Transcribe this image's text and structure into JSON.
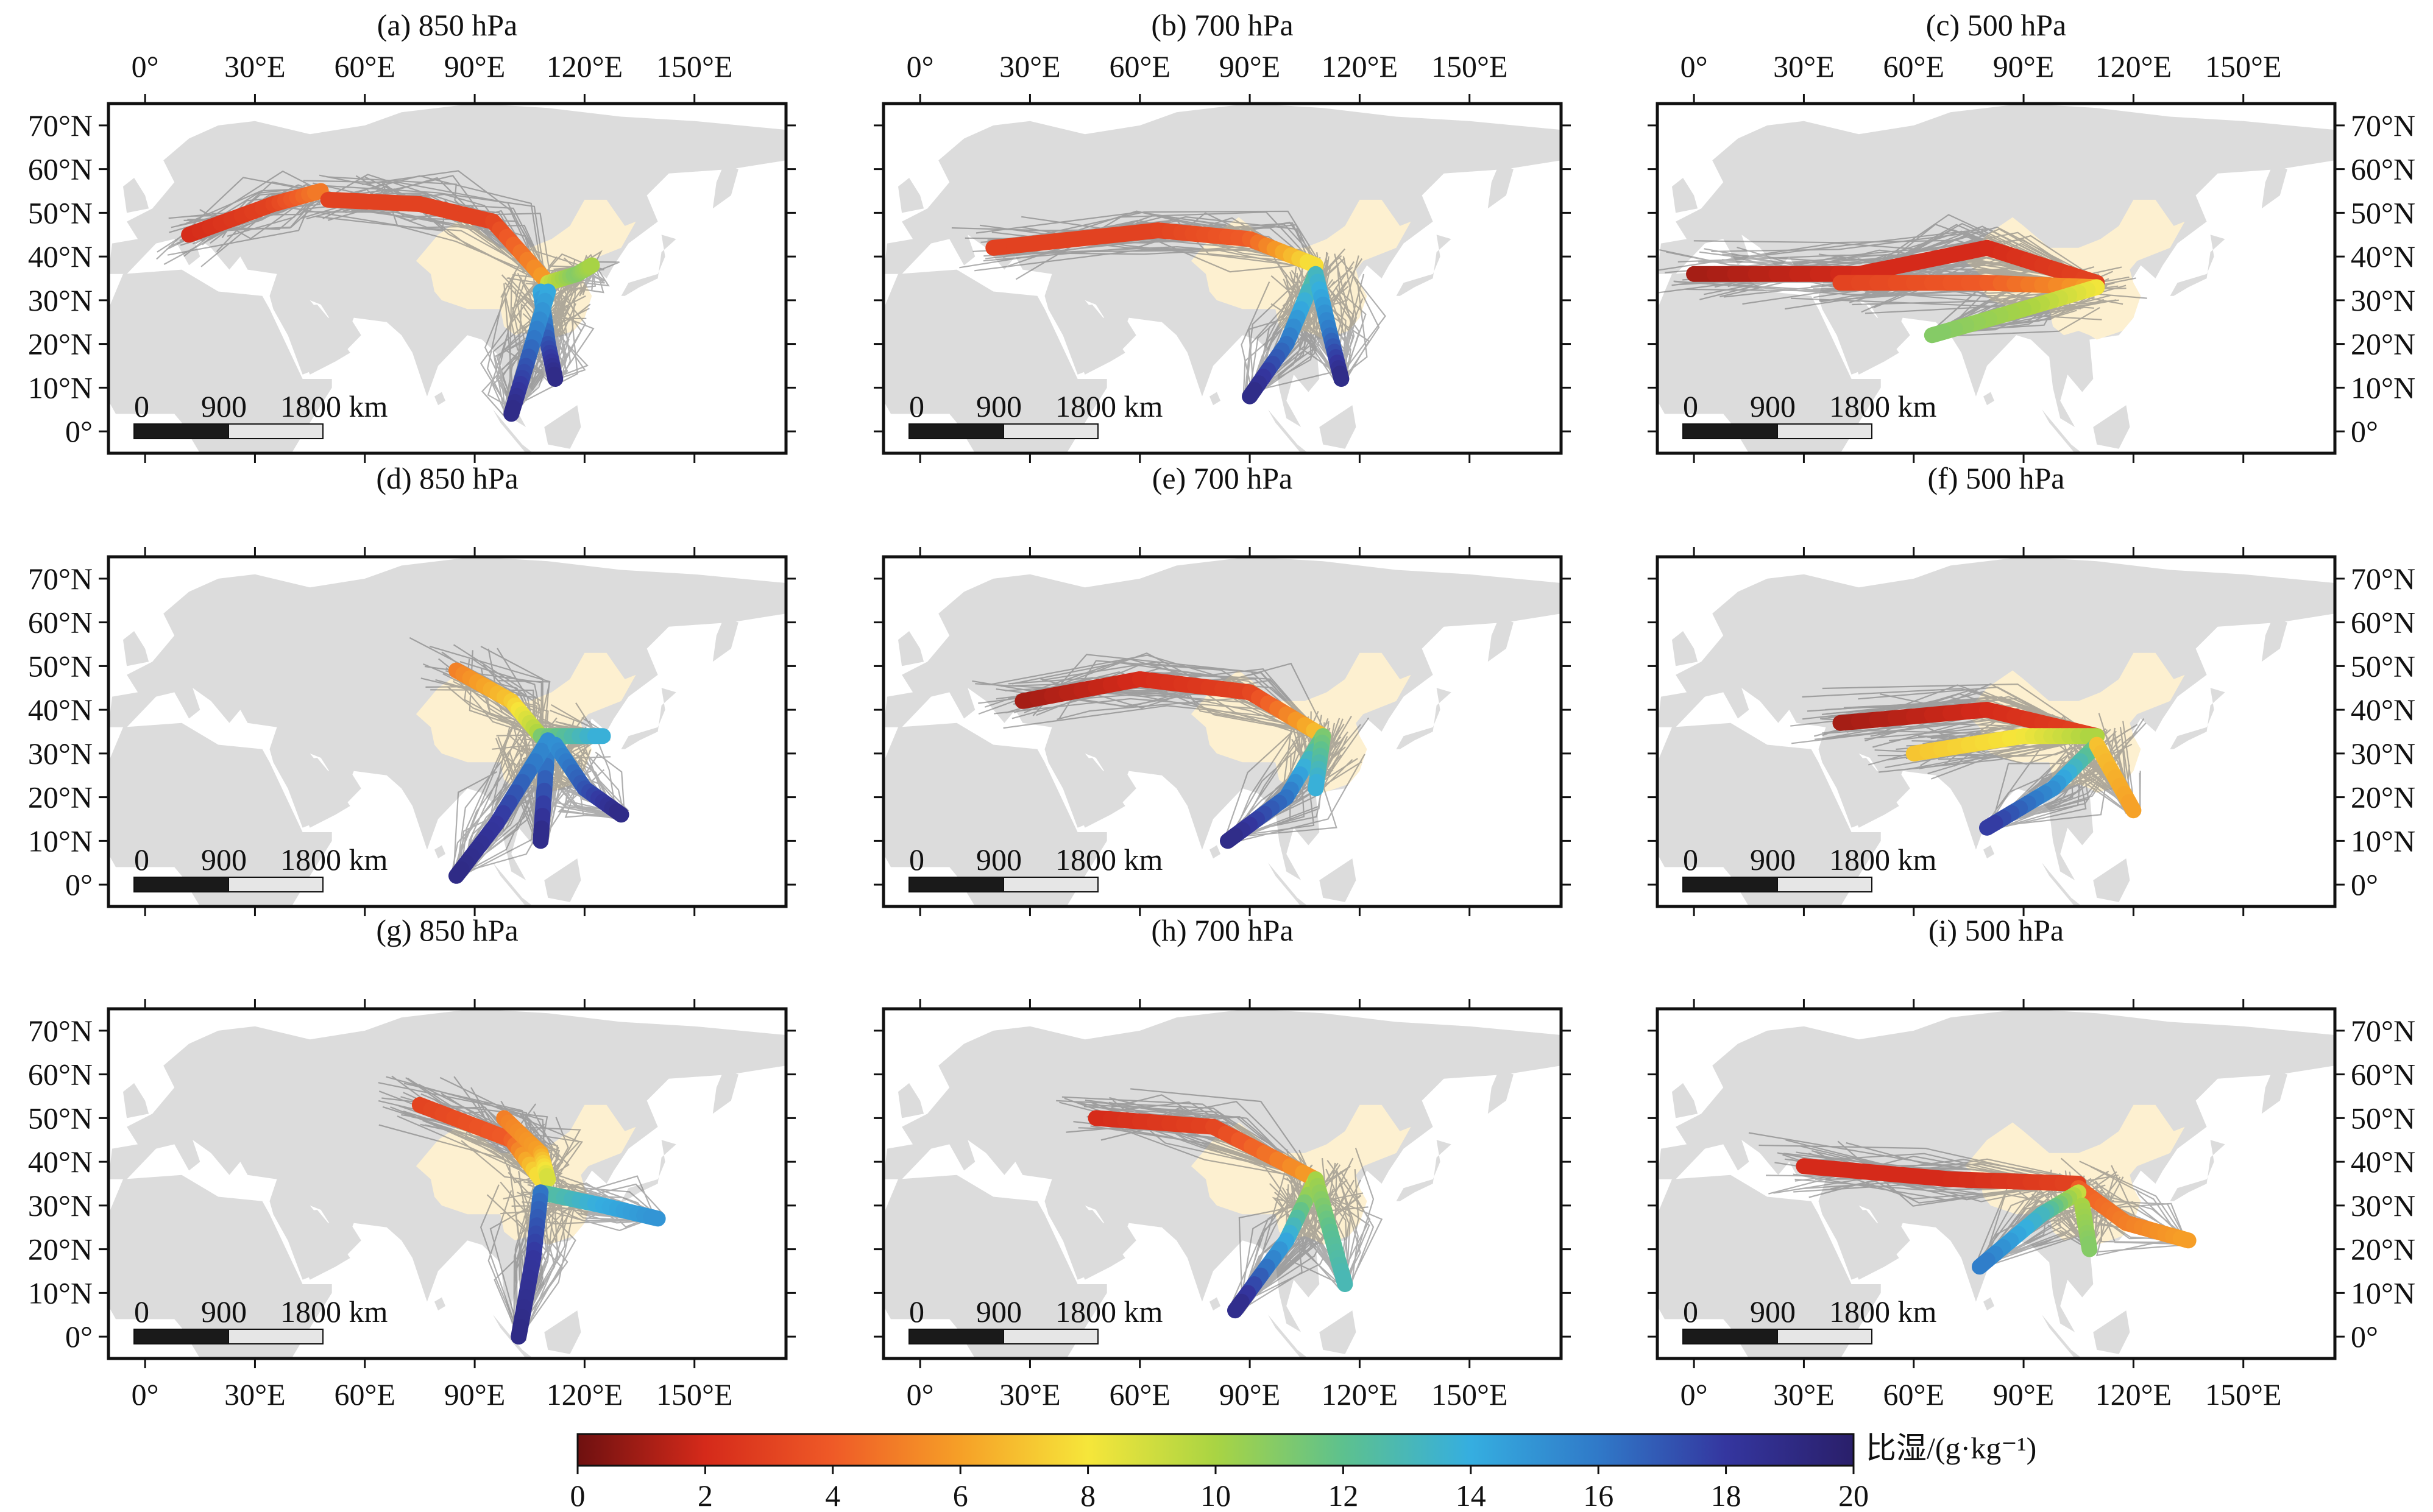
{
  "panels": [
    {
      "id": "a",
      "title": "(a) 850 hPa"
    },
    {
      "id": "b",
      "title": "(b) 700 hPa"
    },
    {
      "id": "c",
      "title": "(c) 500 hPa"
    },
    {
      "id": "d",
      "title": "(d) 850 hPa"
    },
    {
      "id": "e",
      "title": "(e) 700 hPa"
    },
    {
      "id": "f",
      "title": "(f) 500 hPa"
    },
    {
      "id": "g",
      "title": "(g) 850 hPa"
    },
    {
      "id": "h",
      "title": "(h) 700 hPa"
    },
    {
      "id": "i",
      "title": "(i) 500 hPa"
    }
  ],
  "lon_ticks": [
    "0°",
    "30°E",
    "60°E",
    "90°E",
    "120°E",
    "150°E"
  ],
  "lat_ticks": [
    "70°N",
    "60°N",
    "50°N",
    "40°N",
    "30°N",
    "20°N",
    "10°N",
    "0°"
  ],
  "lon_values": [
    0,
    30,
    60,
    90,
    120,
    150
  ],
  "lat_values": [
    70,
    60,
    50,
    40,
    30,
    20,
    10,
    0
  ],
  "map_extent": {
    "lon": [
      -10,
      175
    ],
    "lat": [
      -5,
      75
    ]
  },
  "scale_bar": {
    "labels": [
      "0",
      "900",
      "1800 km"
    ]
  },
  "colorbar": {
    "label": "比湿/(g·kg⁻¹)",
    "ticks": [
      "0",
      "2",
      "4",
      "6",
      "8",
      "10",
      "12",
      "14",
      "16",
      "18",
      "20"
    ],
    "range": [
      0,
      20
    ],
    "colors": [
      "#6e1010",
      "#d52a1a",
      "#ef5a27",
      "#f6a027",
      "#f6e63a",
      "#a9d443",
      "#5dc18e",
      "#35aee0",
      "#3079c8",
      "#34369f",
      "#2a1f6a"
    ]
  },
  "colors": {
    "land": "#dcdcdc",
    "china": "#fdf0d0",
    "trajectory_lines": "#6e6e6e",
    "frame": "#111111"
  },
  "chart_data": {
    "type": "map",
    "variable": "specific humidity (g/kg) along mean trajectory clusters",
    "clusters": [
      {
        "panel": "a",
        "paths": [
          {
            "points": [
              [
                12,
                45
              ],
              [
                35,
                52
              ],
              [
                48,
                55
              ]
            ],
            "q": [
              2,
              3,
              5
            ]
          },
          {
            "points": [
              [
                50,
                53
              ],
              [
                75,
                52
              ],
              [
                95,
                48
              ],
              [
                110,
                34
              ]
            ],
            "q": [
              3,
              3,
              3,
              6
            ]
          },
          {
            "points": [
              [
                110,
                34
              ],
              [
                118,
                36
              ],
              [
                122,
                38
              ]
            ],
            "q": [
              9,
              11,
              10
            ]
          },
          {
            "points": [
              [
                108,
                32
              ],
              [
                110,
                20
              ],
              [
                112,
                12
              ]
            ],
            "q": [
              14,
              17,
              19
            ]
          },
          {
            "points": [
              [
                110,
                32
              ],
              [
                104,
                15
              ],
              [
                100,
                4
              ]
            ],
            "q": [
              14,
              17,
              19
            ]
          }
        ]
      },
      {
        "panel": "b",
        "paths": [
          {
            "points": [
              [
                20,
                42
              ],
              [
                65,
                46
              ],
              [
                90,
                44
              ],
              [
                108,
                38
              ]
            ],
            "q": [
              3,
              3,
              4,
              8
            ]
          },
          {
            "points": [
              [
                108,
                36
              ],
              [
                100,
                20
              ],
              [
                90,
                8
              ]
            ],
            "q": [
              12,
              16,
              19
            ]
          },
          {
            "points": [
              [
                108,
                36
              ],
              [
                112,
                22
              ],
              [
                115,
                12
              ]
            ],
            "q": [
              13,
              16,
              19
            ]
          }
        ]
      },
      {
        "panel": "c",
        "paths": [
          {
            "points": [
              [
                0,
                36
              ],
              [
                45,
                36
              ],
              [
                80,
                42
              ],
              [
                110,
                34
              ]
            ],
            "q": [
              1,
              2,
              2,
              3
            ]
          },
          {
            "points": [
              [
                40,
                34
              ],
              [
                80,
                34
              ],
              [
                110,
                33
              ]
            ],
            "q": [
              3,
              4,
              6
            ]
          },
          {
            "points": [
              [
                110,
                33
              ],
              [
                90,
                28
              ],
              [
                65,
                22
              ]
            ],
            "q": [
              8,
              10,
              11
            ]
          }
        ]
      },
      {
        "panel": "d",
        "paths": [
          {
            "points": [
              [
                85,
                49
              ],
              [
                100,
                42
              ],
              [
                108,
                34
              ]
            ],
            "q": [
              5,
              7,
              10
            ]
          },
          {
            "points": [
              [
                108,
                34
              ],
              [
                125,
                34
              ]
            ],
            "q": [
              11,
              14
            ]
          },
          {
            "points": [
              [
                110,
                33
              ],
              [
                108,
                10
              ]
            ],
            "q": [
              15,
              19
            ]
          },
          {
            "points": [
              [
                110,
                33
              ],
              [
                96,
                14
              ],
              [
                85,
                2
              ]
            ],
            "q": [
              15,
              18,
              19
            ]
          },
          {
            "points": [
              [
                112,
                32
              ],
              [
                120,
                22
              ],
              [
                130,
                16
              ]
            ],
            "q": [
              15,
              17,
              19
            ]
          }
        ]
      },
      {
        "panel": "e",
        "paths": [
          {
            "points": [
              [
                28,
                42
              ],
              [
                60,
                47
              ],
              [
                90,
                44
              ],
              [
                110,
                34
              ]
            ],
            "q": [
              1,
              2,
              3,
              7
            ]
          },
          {
            "points": [
              [
                110,
                34
              ],
              [
                100,
                20
              ],
              [
                84,
                10
              ]
            ],
            "q": [
              11,
              16,
              19
            ]
          },
          {
            "points": [
              [
                110,
                34
              ],
              [
                108,
                22
              ]
            ],
            "q": [
              11,
              14
            ]
          }
        ]
      },
      {
        "panel": "f",
        "paths": [
          {
            "points": [
              [
                40,
                37
              ],
              [
                80,
                40
              ],
              [
                110,
                34
              ]
            ],
            "q": [
              1,
              2,
              3
            ]
          },
          {
            "points": [
              [
                60,
                30
              ],
              [
                90,
                34
              ],
              [
                110,
                34
              ]
            ],
            "q": [
              7,
              8,
              10
            ]
          },
          {
            "points": [
              [
                110,
                32
              ],
              [
                98,
                22
              ],
              [
                80,
                13
              ]
            ],
            "q": [
              11,
              15,
              18
            ]
          },
          {
            "points": [
              [
                110,
                32
              ],
              [
                120,
                17
              ]
            ],
            "q": [
              7,
              6
            ]
          }
        ]
      },
      {
        "panel": "g",
        "paths": [
          {
            "points": [
              [
                75,
                53
              ],
              [
                100,
                45
              ],
              [
                108,
                36
              ]
            ],
            "q": [
              3,
              4,
              8
            ]
          },
          {
            "points": [
              [
                98,
                50
              ],
              [
                108,
                42
              ],
              [
                110,
                36
              ]
            ],
            "q": [
              5,
              6,
              9
            ]
          },
          {
            "points": [
              [
                108,
                33
              ],
              [
                125,
                30
              ],
              [
                140,
                27
              ]
            ],
            "q": [
              12,
              14,
              15
            ]
          },
          {
            "points": [
              [
                108,
                33
              ],
              [
                106,
                18
              ],
              [
                102,
                0
              ]
            ],
            "q": [
              16,
              18,
              19
            ]
          }
        ]
      },
      {
        "panel": "h",
        "paths": [
          {
            "points": [
              [
                48,
                50
              ],
              [
                80,
                48
              ],
              [
                108,
                36
              ]
            ],
            "q": [
              2,
              3,
              6
            ]
          },
          {
            "points": [
              [
                108,
                36
              ],
              [
                100,
                22
              ],
              [
                86,
                6
              ]
            ],
            "q": [
              9,
              14,
              19
            ]
          },
          {
            "points": [
              [
                108,
                36
              ],
              [
                112,
                24
              ],
              [
                116,
                12
              ]
            ],
            "q": [
              10,
              12,
              13
            ]
          }
        ]
      },
      {
        "panel": "i",
        "paths": [
          {
            "points": [
              [
                30,
                39
              ],
              [
                70,
                36
              ],
              [
                105,
                35
              ]
            ],
            "q": [
              2,
              2,
              3
            ]
          },
          {
            "points": [
              [
                105,
                34
              ],
              [
                118,
                26
              ],
              [
                135,
                22
              ]
            ],
            "q": [
              4,
              5,
              6
            ]
          },
          {
            "points": [
              [
                105,
                33
              ],
              [
                95,
                28
              ],
              [
                78,
                16
              ]
            ],
            "q": [
              9,
              13,
              16
            ]
          },
          {
            "points": [
              [
                106,
                30
              ],
              [
                108,
                20
              ]
            ],
            "q": [
              10,
              11
            ]
          }
        ]
      }
    ]
  }
}
